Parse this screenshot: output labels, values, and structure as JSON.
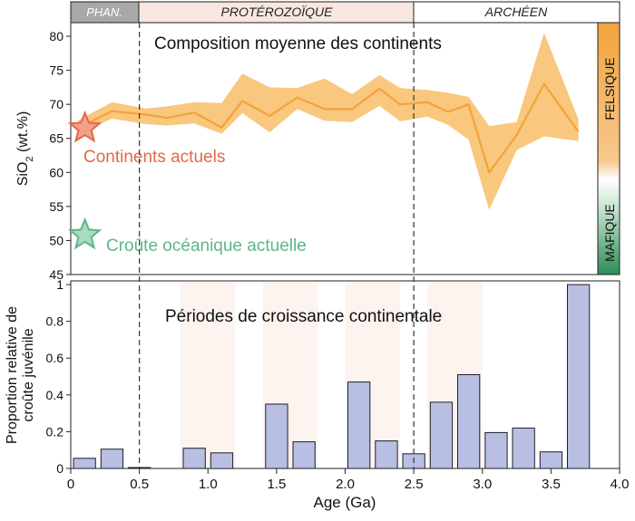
{
  "colors": {
    "envelope": "#f9c77d",
    "mean_line": "#f3a33b",
    "bars_fill": "#b8bfe2",
    "bars_stroke": "#1e1e2a",
    "phan_band": "#a8a8a8",
    "prot_band": "#f8e7df",
    "arch_band": "#ffffff",
    "modern_continents": "#e26a48",
    "oceanic_crust": "#5fb58a",
    "felsic": "#f3a33b",
    "mafic": "#2e8b57"
  },
  "eons": [
    {
      "label": "PHAN.",
      "start": 0,
      "end": 0.54
    },
    {
      "label": "PROTÉROZOÏQUE",
      "start": 0.54,
      "end": 2.5
    },
    {
      "label": "ARCHÉEN",
      "start": 2.5,
      "end": 4.0
    }
  ],
  "side_bar": {
    "felsic_label": "FELSIQUE",
    "mafic_label": "MAFIQUE"
  },
  "chart_data": [
    {
      "type": "area",
      "title": "Composition moyenne des continents",
      "ylabel_main": "SiO",
      "ylabel_sub": "2",
      "ylabel_unit": " (wt.%)",
      "ylim": [
        45,
        82
      ],
      "yticks": [
        "45",
        "50",
        "55",
        "60",
        "65",
        "70",
        "75",
        "80"
      ],
      "series": [
        {
          "x": [
            0.05,
            0.3,
            0.55,
            0.7,
            0.9,
            1.1,
            1.25,
            1.45,
            1.65,
            1.85,
            2.05,
            2.25,
            2.4,
            2.6,
            2.75,
            2.9,
            3.05,
            3.25,
            3.45,
            3.7
          ],
          "mean": [
            66.5,
            69,
            68.5,
            68,
            68.8,
            66.6,
            70.5,
            68.3,
            71,
            69.3,
            69.3,
            72.3,
            70,
            70.3,
            68.9,
            70,
            60,
            65.5,
            73,
            66
          ],
          "upper": [
            67.6,
            70.3,
            69.4,
            69.7,
            70.3,
            70.2,
            74.5,
            72.5,
            72.4,
            73.8,
            71.5,
            74.3,
            72.4,
            72.1,
            71.7,
            71.1,
            66.8,
            67.4,
            80.5,
            67.8
          ],
          "lower": [
            65.5,
            67.9,
            67.1,
            66.9,
            67.2,
            65.7,
            68.7,
            65.9,
            69.3,
            67.6,
            67.4,
            69.8,
            67.5,
            68.2,
            67,
            64.8,
            54.5,
            63.3,
            65.3,
            64.6
          ]
        }
      ],
      "markers": [
        {
          "label": "Continents actuels",
          "x": 0.05,
          "y": 66.5
        },
        {
          "label": "Croûte océanique actuelle",
          "x": 0.05,
          "y": 50.8
        }
      ]
    },
    {
      "type": "bar",
      "title": "Périodes de croissance continentale",
      "xlabel": "Age (Ga)",
      "ylabel_line1": "Proportion relative de",
      "ylabel_line2": "croûte juvénile",
      "xlim": [
        0,
        4.0
      ],
      "ylim": [
        0,
        1.02
      ],
      "xticks": [
        "0",
        "0.5",
        "1.0",
        "1.5",
        "2.0",
        "2.5",
        "3.0",
        "3.5",
        "4.0"
      ],
      "yticks": [
        "0",
        "0.2",
        "0.4",
        "0.6",
        "0.8",
        "1"
      ],
      "bins": [
        0.0,
        0.2,
        0.4,
        0.6,
        0.8,
        1.0,
        1.2,
        1.4,
        1.6,
        1.8,
        2.0,
        2.2,
        2.4,
        2.6,
        2.8,
        3.0,
        3.2,
        3.4,
        3.6,
        3.8
      ],
      "values": [
        0.055,
        0.105,
        0.005,
        0,
        0.11,
        0.085,
        0,
        0.35,
        0.145,
        0,
        0.47,
        0.15,
        0.08,
        0.36,
        0.51,
        0.195,
        0.22,
        0.09,
        1.0,
        0
      ],
      "shaded_periods": [
        [
          0.8,
          1.2
        ],
        [
          1.4,
          1.8
        ],
        [
          2.0,
          2.4
        ],
        [
          2.6,
          3.0
        ]
      ],
      "boundaries": [
        0.5,
        2.5
      ]
    }
  ]
}
